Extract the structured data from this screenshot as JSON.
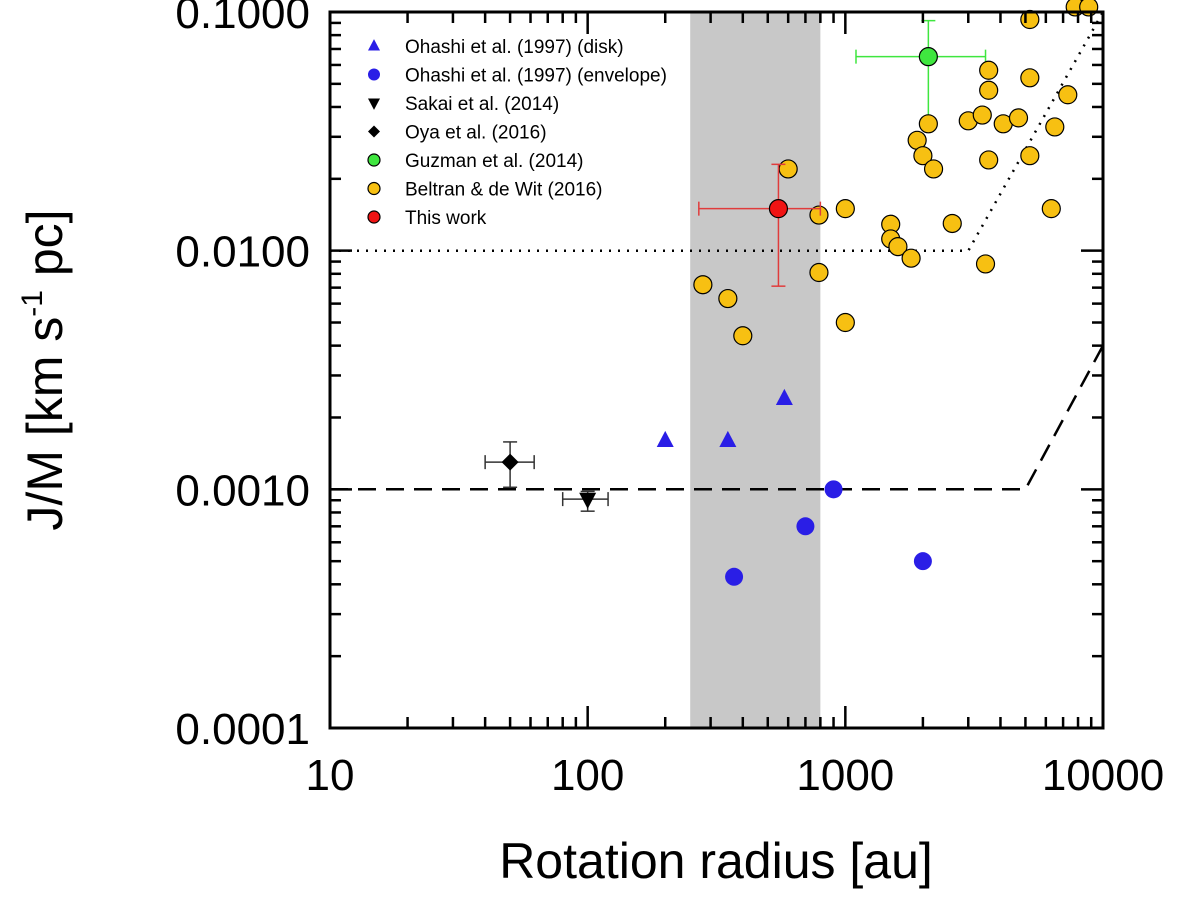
{
  "chart_data": {
    "type": "scatter",
    "title": "",
    "xlabel": "Rotation radius [au]",
    "ylabel": "J/M [km s^-1 pc]",
    "ylabel_parts": {
      "main": "J/M [km s",
      "exp": "-1",
      "unit": " pc]"
    },
    "xscale": "log",
    "yscale": "log",
    "xlim": [
      10,
      10000
    ],
    "ylim": [
      0.0001,
      0.1
    ],
    "xticks": [
      10,
      100,
      1000,
      10000
    ],
    "xtick_labels": [
      "10",
      "100",
      "1000",
      "10000"
    ],
    "yticks": [
      0.0001,
      0.001,
      0.01,
      0.1
    ],
    "ytick_labels": [
      "0.0001",
      "0.0010",
      "0.0100",
      "0.1000"
    ],
    "legend_position": "top-left",
    "shaded_region": {
      "x": [
        250,
        800
      ],
      "color": "#c8c8c8"
    },
    "lines": [
      {
        "style": "dotted",
        "points": [
          [
            10,
            0.01
          ],
          [
            3000,
            0.01
          ],
          [
            10000,
            0.1
          ]
        ]
      },
      {
        "style": "dashed",
        "points": [
          [
            10,
            0.001
          ],
          [
            5000,
            0.001
          ],
          [
            10000,
            0.004
          ]
        ]
      }
    ],
    "series": [
      {
        "name": "Ohashi et al. (1997) (disk)",
        "marker": "triangle-up",
        "color": "#2a1ee6",
        "outline": "none",
        "points": [
          {
            "x": 200,
            "y": 0.0016
          },
          {
            "x": 350,
            "y": 0.0016
          },
          {
            "x": 580,
            "y": 0.0024
          }
        ]
      },
      {
        "name": "Ohashi et al. (1997) (envelope)",
        "marker": "circle",
        "color": "#2a1ee6",
        "outline": "none",
        "points": [
          {
            "x": 370,
            "y": 0.00043
          },
          {
            "x": 700,
            "y": 0.0007
          },
          {
            "x": 900,
            "y": 0.001
          },
          {
            "x": 2000,
            "y": 0.0005
          }
        ]
      },
      {
        "name": "Sakai et al. (2014)",
        "marker": "triangle-down",
        "color": "#000000",
        "outline": "none",
        "points": [
          {
            "x": 100,
            "y": 0.00091,
            "xerr": [
              80,
              120
            ],
            "yerr": [
              0.00081,
              0.00098
            ]
          }
        ]
      },
      {
        "name": "Oya et al. (2016)",
        "marker": "diamond",
        "color": "#000000",
        "outline": "none",
        "points": [
          {
            "x": 50,
            "y": 0.0013,
            "xerr": [
              40,
              62
            ],
            "yerr": [
              0.00102,
              0.00158
            ]
          }
        ]
      },
      {
        "name": "Guzman et al. (2014)",
        "marker": "circle",
        "color": "#3fe63f",
        "outline": "#000000",
        "errcolor": "#3fe63f",
        "points": [
          {
            "x": 2100,
            "y": 0.065,
            "xerr": [
              1100,
              3500
            ],
            "yerr": [
              0.036,
              0.092
            ]
          }
        ]
      },
      {
        "name": "Beltran & de Wit (2016)",
        "marker": "circle",
        "color": "#f7c012",
        "outline": "#000000",
        "points": [
          {
            "x": 280,
            "y": 0.0072
          },
          {
            "x": 350,
            "y": 0.0063
          },
          {
            "x": 400,
            "y": 0.0044
          },
          {
            "x": 600,
            "y": 0.022
          },
          {
            "x": 790,
            "y": 0.0141
          },
          {
            "x": 790,
            "y": 0.0081
          },
          {
            "x": 1000,
            "y": 0.015
          },
          {
            "x": 1000,
            "y": 0.005
          },
          {
            "x": 1500,
            "y": 0.0129
          },
          {
            "x": 1500,
            "y": 0.0112
          },
          {
            "x": 1600,
            "y": 0.0104
          },
          {
            "x": 1800,
            "y": 0.0093
          },
          {
            "x": 1900,
            "y": 0.029
          },
          {
            "x": 2000,
            "y": 0.025
          },
          {
            "x": 2100,
            "y": 0.034
          },
          {
            "x": 2200,
            "y": 0.022
          },
          {
            "x": 2600,
            "y": 0.013
          },
          {
            "x": 3000,
            "y": 0.035
          },
          {
            "x": 3400,
            "y": 0.037
          },
          {
            "x": 3600,
            "y": 0.057
          },
          {
            "x": 3600,
            "y": 0.047
          },
          {
            "x": 3600,
            "y": 0.024
          },
          {
            "x": 3500,
            "y": 0.0088
          },
          {
            "x": 4100,
            "y": 0.034
          },
          {
            "x": 4700,
            "y": 0.036
          },
          {
            "x": 5200,
            "y": 0.093
          },
          {
            "x": 5200,
            "y": 0.053
          },
          {
            "x": 5200,
            "y": 0.025
          },
          {
            "x": 6300,
            "y": 0.015
          },
          {
            "x": 6500,
            "y": 0.033
          },
          {
            "x": 7300,
            "y": 0.045
          },
          {
            "x": 7800,
            "y": 0.105
          },
          {
            "x": 8800,
            "y": 0.105
          }
        ]
      },
      {
        "name": "This work",
        "marker": "circle",
        "color": "#f01414",
        "outline": "#000000",
        "errcolor": "#e03c3c",
        "points": [
          {
            "x": 550,
            "y": 0.015,
            "xerr": [
              270,
              800
            ],
            "yerr": [
              0.0071,
              0.023
            ]
          }
        ]
      }
    ]
  }
}
